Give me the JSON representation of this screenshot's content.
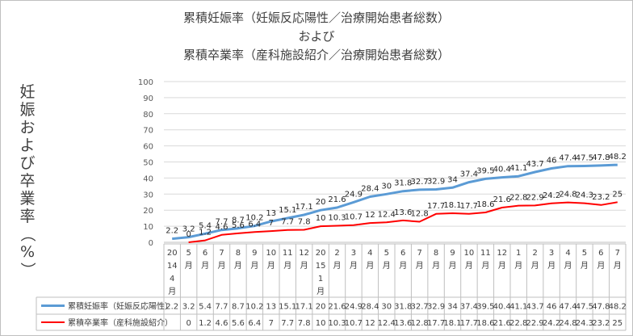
{
  "chart_data": {
    "type": "line",
    "title_lines": [
      "累積妊娠率（妊娠反応陽性／治療開始患者総数）",
      "および",
      "累積卒業率（産科施設紹介／治療開始患者総数）"
    ],
    "ylabel": "妊娠および卒業率（%）",
    "ylim": [
      0,
      100
    ],
    "yticks": [
      "0",
      "10",
      "20",
      "30",
      "40",
      "50",
      "60",
      "70",
      "80",
      "90",
      "100"
    ],
    "categories": [
      [
        "20",
        "14",
        "4",
        "月"
      ],
      [
        "5",
        "月"
      ],
      [
        "6",
        "月"
      ],
      [
        "7",
        "月"
      ],
      [
        "8",
        "月"
      ],
      [
        "9",
        "月"
      ],
      [
        "10",
        "月"
      ],
      [
        "11",
        "月"
      ],
      [
        "12",
        "月"
      ],
      [
        "20",
        "15",
        "1",
        "月"
      ],
      [
        "2",
        "月"
      ],
      [
        "3",
        "月"
      ],
      [
        "4",
        "月"
      ],
      [
        "5",
        "月"
      ],
      [
        "6",
        "月"
      ],
      [
        "7",
        "月"
      ],
      [
        "8",
        "月"
      ],
      [
        "9",
        "月"
      ],
      [
        "10",
        "月"
      ],
      [
        "11",
        "月"
      ],
      [
        "12",
        "月"
      ],
      [
        "1",
        "月"
      ],
      [
        "2",
        "月"
      ],
      [
        "3",
        "月"
      ],
      [
        "4",
        "月"
      ],
      [
        "5",
        "月"
      ],
      [
        "6",
        "月"
      ],
      [
        "7",
        "月"
      ]
    ],
    "series": [
      {
        "name": "累積妊娠率（妊娠反応陽性）",
        "color": "#5b9bd5",
        "values": [
          2.2,
          3.2,
          5.4,
          7.7,
          8.7,
          10.2,
          13,
          15.1,
          17.1,
          20,
          21.6,
          24.9,
          28.4,
          30,
          31.8,
          32.7,
          32.9,
          34,
          37.4,
          39.5,
          40.4,
          41.1,
          43.7,
          46,
          47.4,
          47.5,
          47.8,
          48.2
        ]
      },
      {
        "name": "累積卒業率（産科施設紹介）",
        "color": "#ff0000",
        "values": [
          null,
          0,
          1.2,
          4.6,
          5.6,
          6.4,
          7,
          7.7,
          7.8,
          10,
          10.3,
          10.7,
          12,
          12.4,
          13.6,
          12.8,
          17.7,
          18.1,
          17.7,
          18.6,
          21.6,
          22.8,
          22.9,
          24.2,
          24.8,
          24.3,
          23.2,
          25
        ]
      }
    ]
  }
}
